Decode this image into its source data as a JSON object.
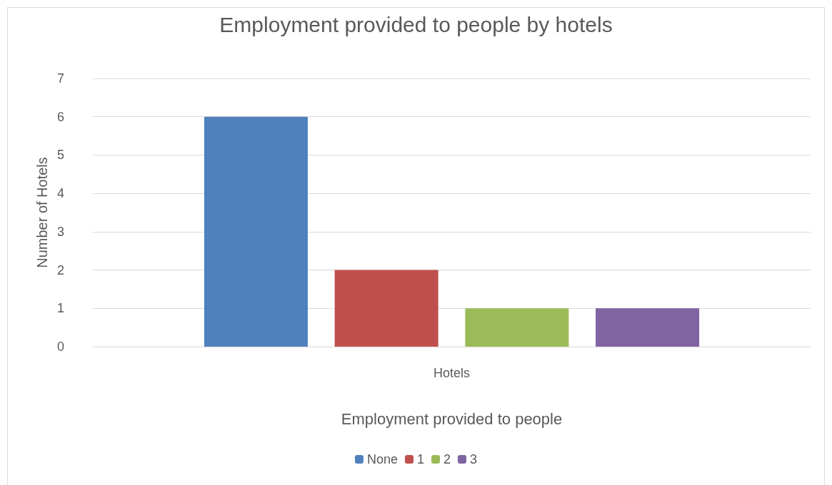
{
  "chart_data": {
    "type": "bar",
    "title": "Employment provided to people by hotels",
    "xlabel": "Employment provided to people",
    "ylabel": "Number of Hotels",
    "categories": [
      "Hotels"
    ],
    "series": [
      {
        "name": "None",
        "color": "#4f81bd",
        "values": [
          6
        ]
      },
      {
        "name": "1",
        "color": "#c0504d",
        "values": [
          2
        ]
      },
      {
        "name": "2",
        "color": "#9bbb59",
        "values": [
          1
        ]
      },
      {
        "name": "3",
        "color": "#8064a2",
        "values": [
          1
        ]
      }
    ],
    "ylim": [
      0,
      7
    ],
    "yticks": [
      0,
      1,
      2,
      3,
      4,
      5,
      6,
      7
    ],
    "grid": "y",
    "legend": "bottom"
  }
}
